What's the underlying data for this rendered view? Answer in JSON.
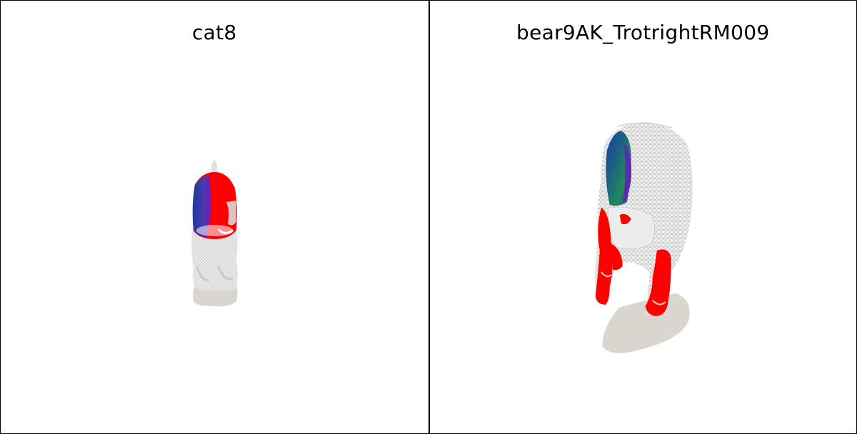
{
  "panels": [
    {
      "title": "cat8",
      "model": "cat-mesh"
    },
    {
      "title": "bear9AK_TrotrightRM009",
      "model": "bear-mesh"
    }
  ],
  "colors": {
    "mesh": "#e4e4e4",
    "wire": "#bdbdbd",
    "shadow": "#d9d6d0",
    "red": "#ff0000",
    "blue": "#2a3ea8",
    "green": "#1f7a5c",
    "purple": "#5a2aa8"
  }
}
